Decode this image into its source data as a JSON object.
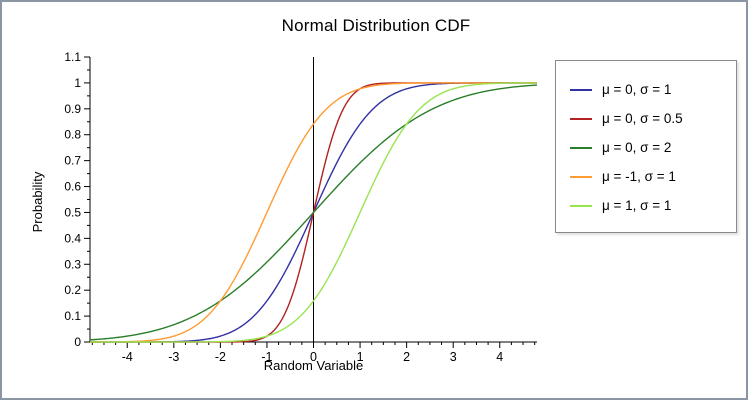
{
  "chart_data": {
    "type": "line",
    "title": "Normal Distribution CDF",
    "xlabel": "Random Variable",
    "ylabel": "Probability",
    "xlim": [
      -4.8,
      4.8
    ],
    "ylim": [
      0,
      1.1
    ],
    "x_major_ticks": [
      -4,
      -3,
      -2,
      -1,
      0,
      1,
      2,
      3,
      4
    ],
    "x_minor_step": 0.25,
    "y_major_step": 0.1,
    "y_minor_step": 0.05,
    "reference_line_x": 0,
    "grid": false,
    "legend_position": "right",
    "series": [
      {
        "name": "μ = 0, σ = 1",
        "mu": 0,
        "sigma": 1,
        "color": "#3131a5"
      },
      {
        "name": "μ = 0, σ = 0.5",
        "mu": 0,
        "sigma": 0.5,
        "color": "#b22222"
      },
      {
        "name": "μ = 0, σ = 2",
        "mu": 0,
        "sigma": 2,
        "color": "#2a7e2a"
      },
      {
        "name": "μ = -1, σ = 1",
        "mu": -1,
        "sigma": 1,
        "color": "#ff9c33"
      },
      {
        "name": "μ = 1, σ = 1",
        "mu": 1,
        "sigma": 1,
        "color": "#99e550"
      }
    ]
  },
  "colors": {
    "frame_border": "#8b95a3",
    "axis": "#000000",
    "legend_border": "#8a8a8a",
    "background": "#ffffff"
  }
}
